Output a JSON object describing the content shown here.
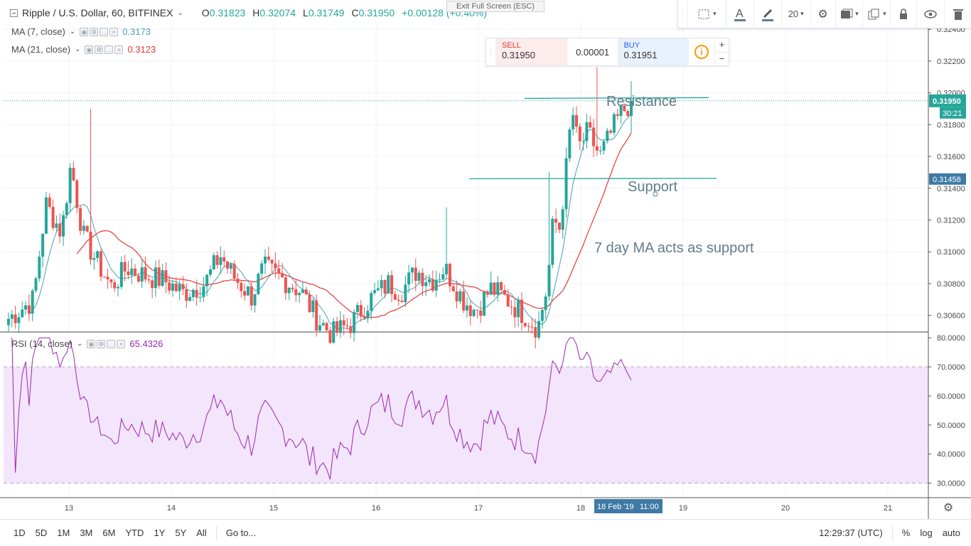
{
  "fullscreen_hint": "Exit Full Screen (ESC)",
  "header": {
    "symbol": "Ripple / U.S. Dollar, 60, BITFINEX",
    "o_label": "O",
    "o_value": "0.31823",
    "h_label": "H",
    "h_value": "0.32074",
    "l_label": "L",
    "l_value": "0.31749",
    "c_label": "C",
    "c_value": "0.31950",
    "change": "+0.00128 (+0.40%)"
  },
  "indicators": {
    "ma7_label": "MA (7, close)",
    "ma7_value": "0.3173",
    "ma21_label": "MA (21, close)",
    "ma21_value": "0.3123",
    "rsi_label": "RSI (14, close)",
    "rsi_value": "65.4326"
  },
  "trade": {
    "sell_label": "SELL",
    "sell_price": "0.31950",
    "spread": "0.00001",
    "buy_label": "BUY",
    "buy_price": "0.31951",
    "plus": "+",
    "minus": "−",
    "info": "i"
  },
  "toolbar": {
    "font_size": "20"
  },
  "price_axis": {
    "labels": [
      "0.32400",
      "0.32200",
      "0.32000",
      "0.31800",
      "0.31600",
      "0.31400",
      "0.31200",
      "0.31000",
      "0.30800",
      "0.30600"
    ],
    "current_price": "0.31950",
    "countdown": "30:21",
    "support_price": "0.31458"
  },
  "rsi_axis": {
    "labels": [
      "80.0000",
      "70.0000",
      "60.0000",
      "50.0000",
      "40.0000",
      "30.0000"
    ]
  },
  "time_axis": {
    "labels": [
      "13",
      "14",
      "15",
      "16",
      "17",
      "18",
      "19",
      "20",
      "21"
    ],
    "crosshair_date": "18 Feb '19",
    "crosshair_time": "11:00"
  },
  "annotations": {
    "resistance": "Resistance",
    "support": "Support",
    "ma_note": "7 day MA acts as support"
  },
  "bottombar": {
    "ranges": [
      "1D",
      "5D",
      "1M",
      "3M",
      "6M",
      "YTD",
      "1Y",
      "5Y",
      "All"
    ],
    "goto": "Go to...",
    "clock": "12:29:37 (UTC)",
    "percent": "%",
    "log": "log",
    "auto": "auto"
  },
  "colors": {
    "up": "#26a69a",
    "down": "#ef5350",
    "ma7": "#4a9fb5",
    "ma21": "#e53935",
    "rsi": "#9c27b0",
    "rsi_band": "#f3e5fb",
    "price_tag": "#26a69a",
    "support_tag": "#3e7aa5"
  }
}
